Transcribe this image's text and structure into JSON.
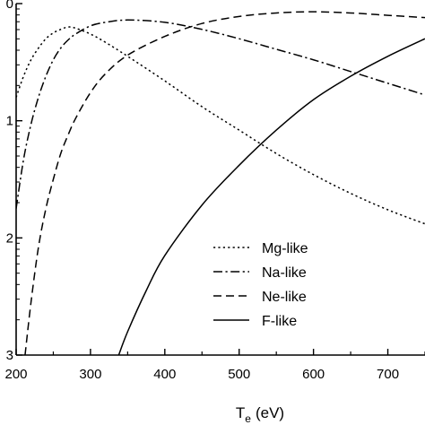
{
  "chart_data": {
    "type": "line",
    "xlabel_main": "T",
    "xlabel_sub": "e",
    "xlabel_unit": "(eV)",
    "ylabel": "",
    "xlim": [
      200,
      750
    ],
    "ylim_log10": [
      -3,
      0
    ],
    "yscale": "log",
    "x_ticks": [
      200,
      300,
      400,
      500,
      600,
      700
    ],
    "y_ticks": [
      {
        "value": 0,
        "label": "0"
      },
      {
        "value": -1,
        "label": "1"
      },
      {
        "value": -2,
        "label": "2"
      },
      {
        "value": -3,
        "label": "3"
      }
    ],
    "legend_position": "lower-right",
    "series": [
      {
        "name": "Mg-like",
        "dash": "dotted",
        "log10_points": [
          [
            200,
            -0.8
          ],
          [
            210,
            -0.62
          ],
          [
            220,
            -0.48
          ],
          [
            230,
            -0.38
          ],
          [
            240,
            -0.3
          ],
          [
            250,
            -0.25
          ],
          [
            260,
            -0.22
          ],
          [
            270,
            -0.2
          ],
          [
            280,
            -0.21
          ],
          [
            300,
            -0.26
          ],
          [
            320,
            -0.33
          ],
          [
            350,
            -0.45
          ],
          [
            400,
            -0.66
          ],
          [
            450,
            -0.88
          ],
          [
            500,
            -1.08
          ],
          [
            550,
            -1.28
          ],
          [
            600,
            -1.46
          ],
          [
            650,
            -1.62
          ],
          [
            700,
            -1.76
          ],
          [
            750,
            -1.88
          ]
        ]
      },
      {
        "name": "Na-like",
        "dash": "dashdot",
        "log10_points": [
          [
            200,
            -1.75
          ],
          [
            210,
            -1.33
          ],
          [
            220,
            -1.03
          ],
          [
            230,
            -0.8
          ],
          [
            240,
            -0.62
          ],
          [
            250,
            -0.48
          ],
          [
            260,
            -0.38
          ],
          [
            270,
            -0.31
          ],
          [
            280,
            -0.26
          ],
          [
            300,
            -0.19
          ],
          [
            320,
            -0.16
          ],
          [
            350,
            -0.14
          ],
          [
            400,
            -0.16
          ],
          [
            450,
            -0.22
          ],
          [
            500,
            -0.3
          ],
          [
            550,
            -0.39
          ],
          [
            600,
            -0.48
          ],
          [
            650,
            -0.58
          ],
          [
            700,
            -0.68
          ],
          [
            750,
            -0.78
          ]
        ]
      },
      {
        "name": "Ne-like",
        "dash": "dashed",
        "log10_points": [
          [
            212,
            -3.0
          ],
          [
            220,
            -2.55
          ],
          [
            230,
            -2.08
          ],
          [
            240,
            -1.75
          ],
          [
            250,
            -1.5
          ],
          [
            260,
            -1.28
          ],
          [
            270,
            -1.12
          ],
          [
            280,
            -0.98
          ],
          [
            300,
            -0.76
          ],
          [
            320,
            -0.6
          ],
          [
            350,
            -0.44
          ],
          [
            400,
            -0.28
          ],
          [
            450,
            -0.17
          ],
          [
            500,
            -0.11
          ],
          [
            550,
            -0.08
          ],
          [
            600,
            -0.07
          ],
          [
            650,
            -0.08
          ],
          [
            700,
            -0.1
          ],
          [
            750,
            -0.12
          ]
        ]
      },
      {
        "name": "F-like",
        "dash": "solid",
        "log10_points": [
          [
            338,
            -3.0
          ],
          [
            350,
            -2.8
          ],
          [
            375,
            -2.45
          ],
          [
            400,
            -2.15
          ],
          [
            450,
            -1.72
          ],
          [
            500,
            -1.38
          ],
          [
            550,
            -1.08
          ],
          [
            600,
            -0.82
          ],
          [
            650,
            -0.62
          ],
          [
            700,
            -0.45
          ],
          [
            750,
            -0.3
          ]
        ]
      }
    ]
  }
}
